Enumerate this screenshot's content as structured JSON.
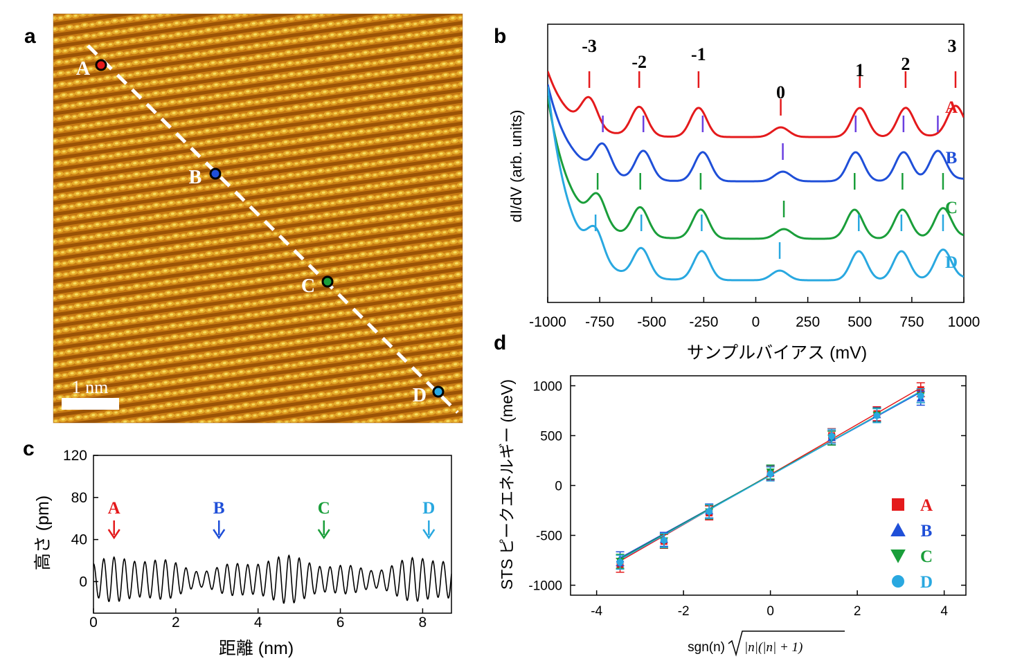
{
  "panels": {
    "a": {
      "label": "a",
      "scale_bar": "1 nm",
      "points": [
        {
          "name": "A",
          "color": "#e41a1c"
        },
        {
          "name": "B",
          "color": "#1f4fd8"
        },
        {
          "name": "C",
          "color": "#1a9e3a"
        },
        {
          "name": "D",
          "color": "#29a8e0"
        }
      ]
    },
    "b": {
      "label": "b",
      "xlabel": "サンプルバイアス (mV)",
      "ylabel": "dI/dV (arb. units)",
      "level_labels": [
        "-3",
        "-2",
        "-1",
        "0",
        "1",
        "2",
        "3"
      ],
      "curve_labels": [
        "A",
        "B",
        "C",
        "D"
      ]
    },
    "c": {
      "label": "c",
      "xlabel": "距離 (nm)",
      "ylabel": "高さ (pm)",
      "arrow_labels": [
        "A",
        "B",
        "C",
        "D"
      ]
    },
    "d": {
      "label": "d",
      "xlabel_prefix": "sgn(n)",
      "xlabel_radicand": "|n|(|n| + 1)",
      "ylabel": "STS ピークエネルギー (meV)",
      "legend": [
        "A",
        "B",
        "C",
        "D"
      ]
    }
  },
  "chart_data": [
    {
      "type": "line",
      "panel": "b",
      "xlim": [
        -1000,
        1000
      ],
      "x_ticks": [
        -1000,
        -750,
        -500,
        -250,
        0,
        250,
        500,
        750,
        1000
      ],
      "series": [
        {
          "name": "A",
          "color": "#e41a1c",
          "peaks_mV": [
            -800,
            -560,
            -275,
            120,
            500,
            720,
            960
          ]
        },
        {
          "name": "B",
          "color": "#1f4fd8",
          "peaks_mV": [
            -735,
            -540,
            -255,
            130,
            480,
            710,
            875
          ]
        },
        {
          "name": "C",
          "color": "#1a9e3a",
          "peaks_mV": [
            -760,
            -555,
            -265,
            135,
            475,
            705,
            900
          ]
        },
        {
          "name": "D",
          "color": "#29a8e0",
          "peaks_mV": [
            -770,
            -550,
            -260,
            115,
            495,
            700,
            900
          ]
        }
      ],
      "level_labels": [
        "-3",
        "-2",
        "-1",
        "0",
        "1",
        "2",
        "3"
      ]
    },
    {
      "type": "line",
      "panel": "c",
      "xlim": [
        0,
        8.7
      ],
      "ylim": [
        -30,
        120
      ],
      "x_ticks": [
        0,
        2,
        4,
        6,
        8
      ],
      "y_ticks": [
        0,
        40,
        80,
        120
      ],
      "oscillation_period_nm": 0.25,
      "amplitude_pm": 20,
      "arrows": [
        {
          "label": "A",
          "x": 0.5,
          "color": "#e41a1c"
        },
        {
          "label": "B",
          "x": 3.05,
          "color": "#1f4fd8"
        },
        {
          "label": "C",
          "x": 5.6,
          "color": "#1a9e3a"
        },
        {
          "label": "D",
          "x": 8.15,
          "color": "#29a8e0"
        }
      ]
    },
    {
      "type": "scatter",
      "panel": "d",
      "xlim": [
        -4.6,
        4.5
      ],
      "ylim": [
        -1100,
        1100
      ],
      "x_ticks": [
        -4,
        -2,
        0,
        2,
        4
      ],
      "y_ticks": [
        -1000,
        -500,
        0,
        500,
        1000
      ],
      "x": [
        -3.46,
        -2.45,
        -1.41,
        0,
        1.41,
        2.45,
        3.46
      ],
      "series": [
        {
          "name": "A",
          "color": "#e41a1c",
          "marker": "square",
          "values": [
            -800,
            -560,
            -275,
            120,
            500,
            720,
            960
          ],
          "fit": [
            110,
            251
          ]
        },
        {
          "name": "B",
          "color": "#1f4fd8",
          "marker": "triangle-up",
          "values": [
            -735,
            -540,
            -255,
            130,
            480,
            710,
            875
          ],
          "fit": [
            105,
            240
          ]
        },
        {
          "name": "C",
          "color": "#1a9e3a",
          "marker": "triangle-down",
          "values": [
            -760,
            -555,
            -265,
            135,
            475,
            705,
            900
          ],
          "fit": [
            105,
            243
          ]
        },
        {
          "name": "D",
          "color": "#29a8e0",
          "marker": "circle",
          "values": [
            -770,
            -550,
            -260,
            115,
            495,
            700,
            900
          ],
          "fit": [
            100,
            244
          ]
        }
      ],
      "error_bar_meV": 70
    }
  ]
}
